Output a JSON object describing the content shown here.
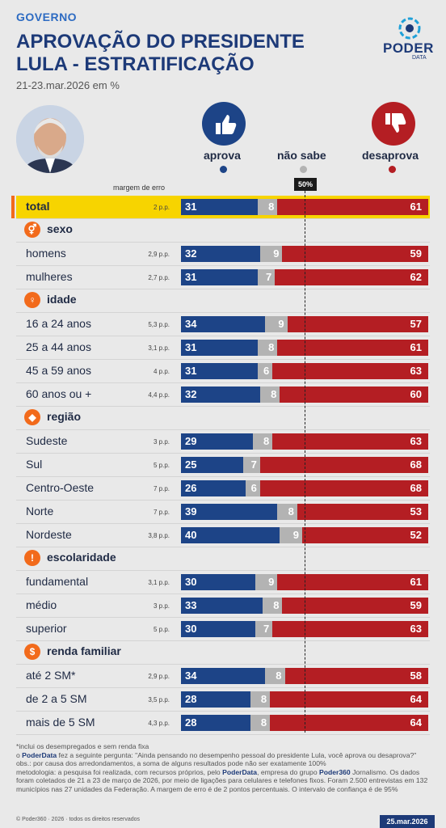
{
  "header": {
    "kicker": "GOVERNO",
    "title": "APROVAÇÃO DO PRESIDENTE LULA - ESTRATIFICAÇÃO",
    "subtitle": "21-23.mar.2026 em %"
  },
  "logo": {
    "brand": "PODER",
    "sub": "DATA"
  },
  "legend": {
    "aprova": "aprova",
    "nao_sabe": "não sabe",
    "desaprova": "desaprova",
    "margin_header": "margem de erro",
    "fifty": "50%"
  },
  "colors": {
    "aprova": "#1d4487",
    "nao_sabe": "#b3b3b3",
    "desaprova": "#b41e23",
    "highlight": "#f7d400",
    "accent": "#f26a1b"
  },
  "chart_data": {
    "type": "bar",
    "stacked": true,
    "orientation": "horizontal",
    "series_names": [
      "aprova",
      "não sabe",
      "desaprova"
    ],
    "reference_line": 50,
    "groups": [
      {
        "group": "",
        "rows": [
          {
            "label": "total",
            "margin": "2 p.p.",
            "values": [
              31,
              8,
              61
            ]
          }
        ]
      },
      {
        "group": "sexo",
        "icon": "gender-icon",
        "rows": [
          {
            "label": "homens",
            "margin": "2,9 p.p.",
            "values": [
              32,
              9,
              59
            ]
          },
          {
            "label": "mulheres",
            "margin": "2,7 p.p.",
            "values": [
              31,
              7,
              62
            ]
          }
        ]
      },
      {
        "group": "idade",
        "icon": "person-icon",
        "rows": [
          {
            "label": "16 a 24 anos",
            "margin": "5,3 p.p.",
            "values": [
              34,
              9,
              57
            ]
          },
          {
            "label": "25 a 44 anos",
            "margin": "3,1 p.p.",
            "values": [
              31,
              8,
              61
            ]
          },
          {
            "label": "45 a 59 anos",
            "margin": "4 p.p.",
            "values": [
              31,
              6,
              63
            ]
          },
          {
            "label": "60 anos ou +",
            "margin": "4,4 p.p.",
            "values": [
              32,
              8,
              60
            ]
          }
        ]
      },
      {
        "group": "região",
        "icon": "brazil-map-icon",
        "rows": [
          {
            "label": "Sudeste",
            "margin": "3 p.p.",
            "values": [
              29,
              8,
              63
            ]
          },
          {
            "label": "Sul",
            "margin": "5 p.p.",
            "values": [
              25,
              7,
              68
            ]
          },
          {
            "label": "Centro-Oeste",
            "margin": "7 p.p.",
            "values": [
              26,
              6,
              68
            ]
          },
          {
            "label": "Norte",
            "margin": "7 p.p.",
            "values": [
              39,
              8,
              53
            ]
          },
          {
            "label": "Nordeste",
            "margin": "3,8 p.p.",
            "values": [
              40,
              9,
              52
            ]
          }
        ]
      },
      {
        "group": "escolaridade",
        "icon": "exclamation-icon",
        "rows": [
          {
            "label": "fundamental",
            "margin": "3,1 p.p.",
            "values": [
              30,
              9,
              61
            ]
          },
          {
            "label": "médio",
            "margin": "3 p.p.",
            "values": [
              33,
              8,
              59
            ]
          },
          {
            "label": "superior",
            "margin": "5 p.p.",
            "values": [
              30,
              7,
              63
            ]
          }
        ]
      },
      {
        "group": "renda familiar",
        "icon": "dollar-icon",
        "rows": [
          {
            "label": "até 2 SM*",
            "margin": "2,9 p.p.",
            "values": [
              34,
              8,
              58
            ]
          },
          {
            "label": "de 2 a 5 SM",
            "margin": "3,5 p.p.",
            "values": [
              28,
              8,
              64
            ]
          },
          {
            "label": "mais de 5 SM",
            "margin": "4,3 p.p.",
            "values": [
              28,
              8,
              64
            ]
          }
        ]
      }
    ]
  },
  "notes": {
    "n1": "*inclui os desempregados e sem renda fixa",
    "n2a": "o ",
    "n2b": "PoderData",
    "n2c": " fez a seguinte pergunta: \"Ainda pensando no desempenho pessoal do presidente Lula, você aprova ou desaprova?\"",
    "n3": "obs.: por causa dos arredondamentos, a soma de alguns resultados pode não ser exatamente 100%",
    "n4a": "metodologia: a pesquisa foi realizada, com recursos próprios, pelo ",
    "n4b": "PoderData",
    "n4c": ", empresa do grupo ",
    "n4d": "Poder360",
    "n4e": " Jornalismo. Os dados foram coletados de 21 a 23 de março de 2026, por meio de ligações para celulares e telefones fixos. Foram 2.500 entrevistas em 132 municípios nas 27 unidades da Federação. A margem de erro é de 2 pontos percentuais. O intervalo de confiança é de 95%"
  },
  "footer": {
    "copyright": "© Poder360 · 2026 · todos os direitos reservados",
    "date": "25.mar.2026"
  }
}
